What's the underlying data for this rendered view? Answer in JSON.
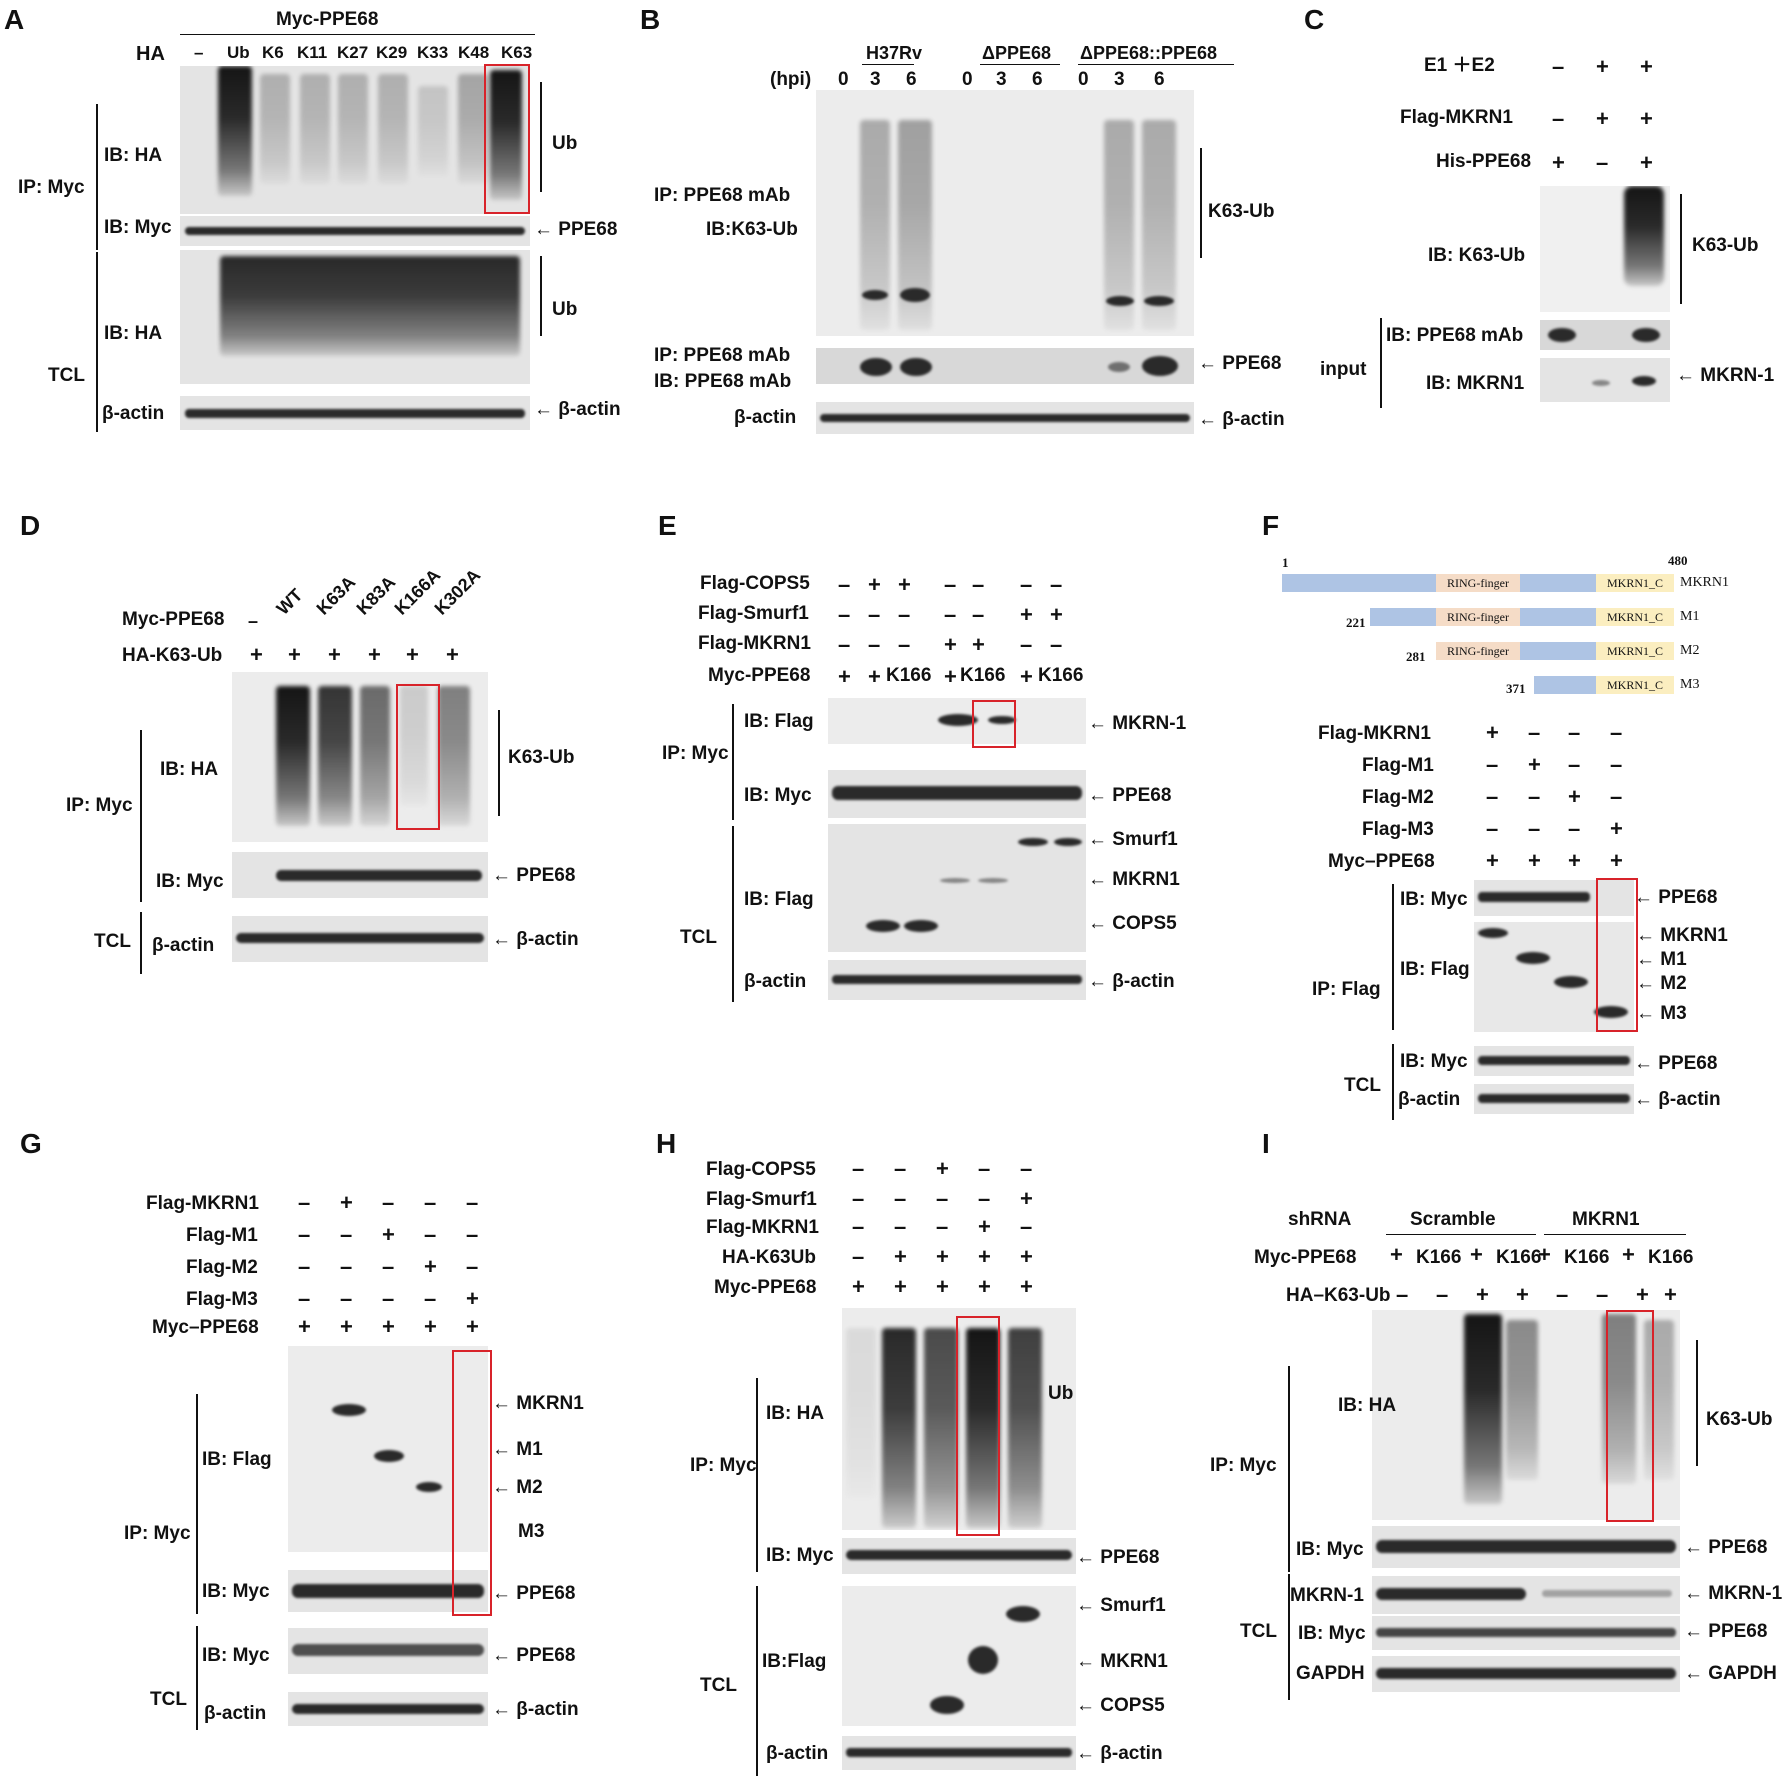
{
  "panel_letters": [
    "A",
    "B",
    "C",
    "D",
    "E",
    "F",
    "G",
    "H",
    "I"
  ],
  "A": {
    "header": "Myc-PPE68",
    "ha": "HA",
    "lanes": [
      "–",
      "Ub",
      "K6",
      "K11",
      "K27",
      "K29",
      "K33",
      "K48",
      "K63"
    ],
    "ip": "IP: Myc",
    "tcl": "TCL",
    "ib_ha": "IB: HA",
    "ib_myc": "IB: Myc",
    "ub": "Ub",
    "ppe68": "PPE68",
    "bactin": "β-actin"
  },
  "B": {
    "groups": [
      "H37Rv",
      "ΔPPE68",
      "ΔPPE68::PPE68"
    ],
    "hpi": "(hpi)",
    "times": [
      "0",
      "3",
      "6",
      "0",
      "3",
      "6",
      "0",
      "3",
      "6"
    ],
    "ip1": "IP: PPE68 mAb",
    "ib1": "IB:K63-Ub",
    "ip2": "IP: PPE68 mAb",
    "ib2": "IB: PPE68 mAb",
    "k63": "K63-Ub",
    "ppe68": "PPE68",
    "bactin": "β-actin"
  },
  "C": {
    "rows": [
      {
        "label": "E1 ＋E2",
        "vals": [
          "–",
          "+",
          "+"
        ]
      },
      {
        "label": "Flag-MKRN1",
        "vals": [
          "–",
          "+",
          "+"
        ]
      },
      {
        "label": "His-PPE68",
        "vals": [
          "+",
          "–",
          "+"
        ]
      }
    ],
    "ib_k63": "IB: K63-Ub",
    "k63": "K63-Ub",
    "ib_ppe": "IB: PPE68 mAb",
    "ib_mkrn": "IB: MKRN1",
    "input": "input",
    "mkrn": "MKRN-1"
  },
  "D": {
    "myc": "Myc-PPE68",
    "lanes": [
      "–",
      "WT",
      "K63A",
      "K83A",
      "K166A",
      "K302A"
    ],
    "ha": "HA-K63-Ub",
    "ha_vals": [
      "+",
      "+",
      "+",
      "+",
      "+",
      "+"
    ],
    "ip": "IP: Myc",
    "tcl": "TCL",
    "ib_ha": "IB: HA",
    "ib_myc": "IB: Myc",
    "bactin": "β-actin",
    "k63": "K63-Ub",
    "ppe68": "PPE68"
  },
  "E": {
    "rows": [
      {
        "label": "Flag-COPS5",
        "vals": [
          "–",
          "+",
          "+",
          "–",
          "–",
          "–",
          "–"
        ]
      },
      {
        "label": "Flag-Smurf1",
        "vals": [
          "–",
          "–",
          "–",
          "–",
          "–",
          "+",
          "+"
        ]
      },
      {
        "label": "Flag-MKRN1",
        "vals": [
          "–",
          "–",
          "–",
          "+",
          "+",
          "–",
          "–"
        ]
      },
      {
        "label": "Myc-PPE68",
        "vals": [
          "+",
          "+",
          "K166",
          "+",
          "K166",
          "+",
          "K166"
        ]
      }
    ],
    "ip": "IP: Myc",
    "tcl": "TCL",
    "ib_flag": "IB: Flag",
    "ib_myc": "IB: Myc",
    "bactin": "β-actin",
    "mkrn1dash": "MKRN-1",
    "ppe68": "PPE68",
    "smurf1": "Smurf1",
    "mkrn1": "MKRN1",
    "cops5": "COPS5"
  },
  "F": {
    "domain": {
      "start": "1",
      "end": "480",
      "ring": "RING-finger",
      "c": "MKRN1_C",
      "names": [
        "MKRN1",
        "M1",
        "M2",
        "M3"
      ],
      "starts": [
        "221",
        "281",
        "371"
      ]
    },
    "rows": [
      {
        "label": "Flag-MKRN1",
        "vals": [
          "+",
          "–",
          "–",
          "–"
        ]
      },
      {
        "label": "Flag-M1",
        "vals": [
          "–",
          "+",
          "–",
          "–"
        ]
      },
      {
        "label": "Flag-M2",
        "vals": [
          "–",
          "–",
          "+",
          "–"
        ]
      },
      {
        "label": "Flag-M3",
        "vals": [
          "–",
          "–",
          "–",
          "+"
        ]
      },
      {
        "label": "Myc–PPE68",
        "vals": [
          "+",
          "+",
          "+",
          "+"
        ]
      }
    ],
    "ib_myc": "IB: Myc",
    "ib_flag": "IB: Flag",
    "ip": "IP: Flag",
    "tcl": "TCL",
    "bactin": "β-actin",
    "ppe68": "PPE68",
    "mkrn1": "MKRN1",
    "m1": "M1",
    "m2": "M2",
    "m3": "M3"
  },
  "G": {
    "rows": [
      {
        "label": "Flag-MKRN1",
        "vals": [
          "–",
          "+",
          "–",
          "–",
          "–"
        ]
      },
      {
        "label": "Flag-M1",
        "vals": [
          "–",
          "–",
          "+",
          "–",
          "–"
        ]
      },
      {
        "label": "Flag-M2",
        "vals": [
          "–",
          "–",
          "–",
          "+",
          "–"
        ]
      },
      {
        "label": "Flag-M3",
        "vals": [
          "–",
          "–",
          "–",
          "–",
          "+"
        ]
      },
      {
        "label": "Myc–PPE68",
        "vals": [
          "+",
          "+",
          "+",
          "+",
          "+"
        ]
      }
    ],
    "ib_flag": "IB: Flag",
    "ib_myc": "IB: Myc",
    "ip": "IP: Myc",
    "tcl": "TCL",
    "bactin": "β-actin",
    "mkrn1": "MKRN1",
    "m1": "M1",
    "m2": "M2",
    "m3": "M3",
    "ppe68": "PPE68"
  },
  "H": {
    "rows": [
      {
        "label": "Flag-COPS5",
        "vals": [
          "–",
          "–",
          "+",
          "–",
          "–"
        ]
      },
      {
        "label": "Flag-Smurf1",
        "vals": [
          "–",
          "–",
          "–",
          "–",
          "+"
        ]
      },
      {
        "label": "Flag-MKRN1",
        "vals": [
          "–",
          "–",
          "–",
          "+",
          "–"
        ]
      },
      {
        "label": "HA-K63Ub",
        "vals": [
          "–",
          "+",
          "+",
          "+",
          "+"
        ]
      },
      {
        "label": "Myc-PPE68",
        "vals": [
          "+",
          "+",
          "+",
          "+",
          "+"
        ]
      }
    ],
    "ib_ha": "IB: HA",
    "ip": "IP: Myc",
    "ib_myc": "IB: Myc",
    "ib_flag": "IB:Flag",
    "tcl": "TCL",
    "bactin": "β-actin",
    "ub": "Ub",
    "ppe68": "PPE68",
    "smurf1": "Smurf1",
    "mkrn1": "MKRN1",
    "cops5": "COPS5"
  },
  "I": {
    "shrna": "shRNA",
    "scramble": "Scramble",
    "mkrn1": "MKRN1",
    "myc": "Myc-PPE68",
    "myc_vals": [
      "+",
      "K166",
      "+",
      "K166",
      "+",
      "K166",
      "+",
      "K166"
    ],
    "ha": "HA–K63-Ub",
    "ha_vals": [
      "–",
      "–",
      "+",
      "+",
      "–",
      "–",
      "+",
      "+"
    ],
    "ip": "IP: Myc",
    "ib_ha": "IB: HA",
    "ib_myc": "IB: Myc",
    "tcl": "TCL",
    "mkrn_row": "MKRN-1",
    "ib_myc2": "IB: Myc",
    "gapdh": "GAPDH",
    "k63": "K63-Ub",
    "ppe68": "PPE68",
    "mkrn1dash": "MKRN-1"
  }
}
